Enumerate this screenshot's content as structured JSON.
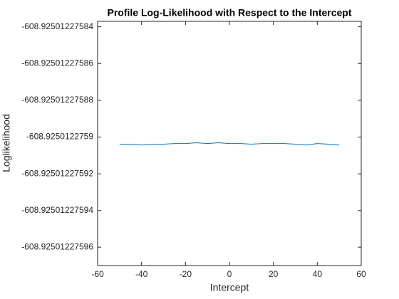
{
  "chart_data": {
    "type": "line",
    "title": "Profile Log-Likelihood with Respect to the Intercept",
    "x_label": "Intercept",
    "y_label": "Loglikelihood",
    "x": [
      -50,
      -45,
      -40,
      -35,
      -30,
      -25,
      -20,
      -15,
      -10,
      -5,
      0,
      5,
      10,
      15,
      20,
      25,
      30,
      35,
      40,
      45,
      50
    ],
    "series": [
      {
        "color": "#0072bd",
        "values": [
          -608.9250122759039,
          -608.9250122759039,
          -608.9250122759044,
          -608.9250122759039,
          -608.9250122759039,
          -608.9250122759036,
          -608.9250122759036,
          -608.9250122759031,
          -608.9250122759036,
          -608.9250122759031,
          -608.9250122759036,
          -608.9250122759036,
          -608.9250122759039,
          -608.9250122759036,
          -608.9250122759036,
          -608.9250122759036,
          -608.9250122759039,
          -608.9250122759044,
          -608.9250122759036,
          -608.9250122759039,
          -608.9250122759044
        ]
      }
    ],
    "xlim": [
      -60,
      60
    ],
    "xticks": [
      -60,
      -40,
      -20,
      0,
      20,
      40,
      60
    ],
    "ylim": [
      -608.92501227597,
      -608.925012275837
    ],
    "yticks": [
      -608.92501227596,
      -608.92501227594,
      -608.92501227592,
      -608.9250122759,
      -608.92501227588,
      -608.92501227586,
      -608.92501227584
    ],
    "grid": false
  }
}
